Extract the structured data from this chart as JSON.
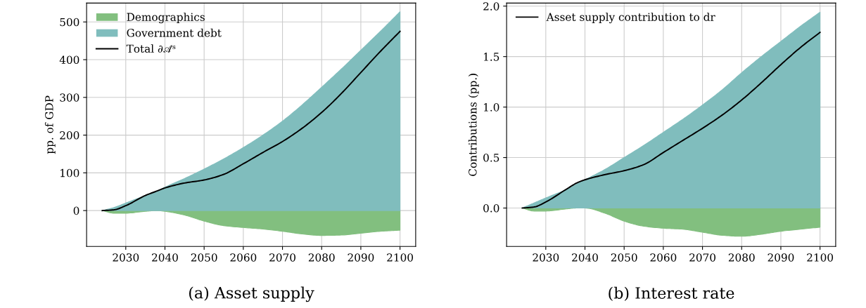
{
  "chart_data": [
    {
      "type": "area",
      "title": "(a) Asset supply",
      "ylabel": "pp. of GDP",
      "x": [
        2024,
        2027,
        2030,
        2035,
        2038,
        2040,
        2045,
        2050,
        2055,
        2060,
        2065,
        2070,
        2075,
        2080,
        2085,
        2090,
        2095,
        2100
      ],
      "series": [
        {
          "name": "Demographics",
          "color": "#82bf7f",
          "values": [
            0,
            -7,
            -7,
            -2,
            0,
            -2,
            -12,
            -28,
            -40,
            -45,
            -49,
            -55,
            -62,
            -66,
            -65,
            -60,
            -55,
            -52
          ]
        },
        {
          "name": "Government debt",
          "color": "#80bdbd",
          "values": [
            0,
            8,
            20,
            40,
            52,
            62,
            85,
            110,
            137,
            167,
            200,
            237,
            280,
            327,
            375,
            425,
            475,
            527
          ]
        },
        {
          "name": "Total ∂𝒜ˢ",
          "type": "line",
          "color": "#000000",
          "values": [
            0,
            2,
            13,
            40,
            52,
            60,
            73,
            81,
            96,
            124,
            154,
            183,
            218,
            260,
            310,
            366,
            422,
            475
          ]
        }
      ],
      "xlim": [
        2020,
        2104
      ],
      "ylim": [
        -95,
        550
      ],
      "xticks": [
        2030,
        2040,
        2050,
        2060,
        2070,
        2080,
        2090,
        2100
      ],
      "yticks": [
        0,
        100,
        200,
        300,
        400,
        500
      ],
      "grid": true,
      "legend": "top left"
    },
    {
      "type": "area",
      "title": "(b) Interest rate",
      "ylabel": "Contributions (pp.)",
      "x": [
        2024,
        2027,
        2030,
        2035,
        2038,
        2040,
        2045,
        2050,
        2055,
        2060,
        2065,
        2070,
        2075,
        2080,
        2085,
        2090,
        2095,
        2100
      ],
      "series": [
        {
          "color": "#82bf7f",
          "values": [
            0,
            -0.03,
            -0.03,
            -0.01,
            0,
            0,
            -0.05,
            -0.13,
            -0.18,
            -0.2,
            -0.21,
            -0.24,
            -0.27,
            -0.28,
            -0.26,
            -0.23,
            -0.21,
            -0.19
          ]
        },
        {
          "color": "#80bdbd",
          "values": [
            0,
            0.05,
            0.1,
            0.18,
            0.24,
            0.28,
            0.38,
            0.5,
            0.62,
            0.75,
            0.88,
            1.02,
            1.17,
            1.34,
            1.5,
            1.65,
            1.8,
            1.94
          ]
        },
        {
          "name": "Asset supply contribution to dr",
          "type": "line",
          "color": "#000000",
          "values": [
            0,
            0.01,
            0.06,
            0.18,
            0.25,
            0.28,
            0.33,
            0.37,
            0.43,
            0.55,
            0.67,
            0.79,
            0.92,
            1.07,
            1.24,
            1.42,
            1.59,
            1.74
          ]
        }
      ],
      "xlim": [
        2020,
        2104
      ],
      "ylim": [
        -0.38,
        2.03
      ],
      "xticks": [
        2030,
        2040,
        2050,
        2060,
        2070,
        2080,
        2090,
        2100
      ],
      "yticks": [
        {
          "value": 0,
          "label": "0.0"
        },
        {
          "value": 0.5,
          "label": "0.5"
        },
        {
          "value": 1,
          "label": "1.0"
        },
        {
          "value": 1.5,
          "label": "1.5"
        },
        {
          "value": 2,
          "label": "2.0"
        }
      ],
      "grid": true,
      "legend": "top left"
    }
  ]
}
